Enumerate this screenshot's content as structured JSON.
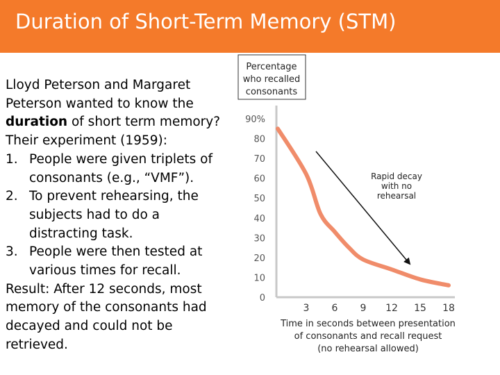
{
  "slide": {
    "title": "Duration of Short-Term Memory (STM)",
    "lines": [
      "Lloyd Peterson and Margaret",
      "Peterson wanted to know the"
    ],
    "line3_bold": "duration",
    "line3_rest": " of short term memory?",
    "line4": "Their experiment (1959):",
    "list": [
      {
        "num": "1.",
        "first": "People were given triplets of",
        "second": "consonants (e.g., “VMF”)."
      },
      {
        "num": "2.",
        "first": "To prevent rehearsing, the",
        "second": "subjects had to do a",
        "third": "distracting task."
      },
      {
        "num": "3.",
        "first": "People were then tested at",
        "second": "various times for recall."
      }
    ],
    "result_lines": [
      "Result: After 12 seconds, most",
      "memory of the consonants had",
      "decayed and could not be",
      "retrieved."
    ]
  },
  "chart_data": {
    "type": "line",
    "ylabel_lines": [
      "Percentage",
      "who recalled",
      "consonants"
    ],
    "xlabel_lines": [
      "Time in seconds between presentation",
      "of consonants and recall request",
      "(no rehearsal allowed)"
    ],
    "y_ticks": [
      "90%",
      "80",
      "70",
      "60",
      "50",
      "40",
      "30",
      "20",
      "10",
      "0"
    ],
    "y_tick_values": [
      90,
      80,
      70,
      60,
      50,
      40,
      30,
      20,
      10,
      0
    ],
    "x_ticks": [
      "3",
      "6",
      "9",
      "12",
      "15",
      "18"
    ],
    "x_tick_values": [
      3,
      6,
      9,
      12,
      15,
      18
    ],
    "xlim": [
      0,
      18
    ],
    "ylim": [
      0,
      90
    ],
    "x": [
      0,
      3,
      4.5,
      6,
      7.5,
      9,
      12,
      15,
      18
    ],
    "y": [
      85,
      62,
      42,
      33,
      25,
      19,
      14,
      9,
      6
    ],
    "annotation_lines": [
      "Rapid decay",
      "with no",
      "rehearsal"
    ],
    "line_color": "#f08c6a",
    "axis_color": "#c8c8c8",
    "grid": false
  }
}
